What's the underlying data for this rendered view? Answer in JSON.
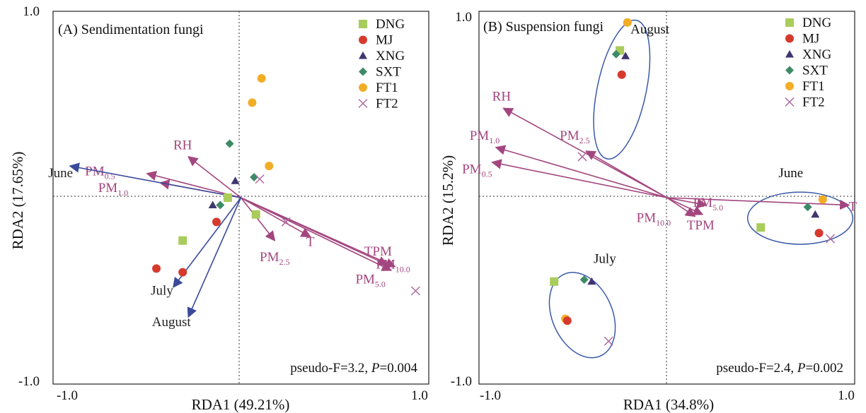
{
  "chart_data": [
    {
      "type": "scatter",
      "panel_title": "(A) Sendimentation fungi",
      "xlabel": "RDA1 (49.21%)",
      "ylabel": "RDA2 (17.65%)",
      "xlim": [
        -1.0,
        1.0
      ],
      "ylim": [
        -1.0,
        1.0
      ],
      "x_ticks": [
        "-1.0",
        "1.0"
      ],
      "y_ticks": [
        "1.0",
        "-1.0"
      ],
      "legend_position": "top-right",
      "stats_prefix": "pseudo-F=3.2, ",
      "stats_p_label": "P",
      "stats_p_value": "=0.004",
      "legend": [
        {
          "name": "DNG",
          "symbol": "square",
          "color": "#a9cc5c"
        },
        {
          "name": "MJ",
          "symbol": "circle",
          "color": "#d63a2d"
        },
        {
          "name": "XNG",
          "symbol": "triangle",
          "color": "#3f3570"
        },
        {
          "name": "SXT",
          "symbol": "diamond",
          "color": "#3e8a66"
        },
        {
          "name": "FT1",
          "symbol": "circle",
          "color": "#f2ad27"
        },
        {
          "name": "FT2",
          "symbol": "x",
          "color": "#b06aa0"
        }
      ],
      "points": [
        {
          "group": "DNG",
          "x": -0.07,
          "y": 0.0
        },
        {
          "group": "DNG",
          "x": 0.08,
          "y": -0.09
        },
        {
          "group": "DNG",
          "x": -0.31,
          "y": -0.23
        },
        {
          "group": "MJ",
          "x": -0.13,
          "y": -0.13
        },
        {
          "group": "MJ",
          "x": -0.45,
          "y": -0.38
        },
        {
          "group": "MJ",
          "x": -0.31,
          "y": -0.4
        },
        {
          "group": "XNG",
          "x": -0.03,
          "y": 0.09
        },
        {
          "group": "XNG",
          "x": -0.15,
          "y": -0.04
        },
        {
          "group": "SXT",
          "x": -0.06,
          "y": 0.29
        },
        {
          "group": "SXT",
          "x": 0.07,
          "y": 0.11
        },
        {
          "group": "SXT",
          "x": -0.11,
          "y": -0.04
        },
        {
          "group": "FT1",
          "x": 0.11,
          "y": 0.64
        },
        {
          "group": "FT1",
          "x": 0.06,
          "y": 0.51
        },
        {
          "group": "FT1",
          "x": 0.15,
          "y": 0.17
        },
        {
          "group": "FT2",
          "x": 0.1,
          "y": 0.1
        },
        {
          "group": "FT2",
          "x": 0.24,
          "y": -0.13
        },
        {
          "group": "FT2",
          "x": 0.93,
          "y": -0.5
        }
      ],
      "env_vectors": [
        {
          "label": "RH",
          "x": -0.28,
          "y": 0.22,
          "color": "#a3467f",
          "label_dx": -0.31,
          "label_dy": 0.26
        },
        {
          "label": "PM",
          "sub": "0.5",
          "x": -0.5,
          "y": 0.13,
          "color": "#a3467f",
          "label_dx": -0.75,
          "label_dy": 0.12
        },
        {
          "label": "PM",
          "sub": "1.0",
          "x": -0.43,
          "y": 0.08,
          "color": "#a3467f",
          "label_dx": -0.68,
          "label_dy": 0.03
        },
        {
          "label": "PM",
          "sub": "2.5",
          "x": 0.18,
          "y": -0.23,
          "color": "#a3467f",
          "label_dx": 0.18,
          "label_dy": -0.34
        },
        {
          "label": "T",
          "x": 0.37,
          "y": -0.21,
          "color": "#a3467f",
          "label_dx": 0.37,
          "label_dy": -0.26
        },
        {
          "label": "TPM",
          "x": 0.78,
          "y": -0.36,
          "color": "#a3467f",
          "label_dx": 0.73,
          "label_dy": -0.31
        },
        {
          "label": "PM",
          "sub": "10.0",
          "x": 0.82,
          "y": -0.37,
          "color": "#a3467f",
          "label_dx": 0.81,
          "label_dy": -0.38
        },
        {
          "label": "PM",
          "sub": "5.0",
          "x": 0.8,
          "y": -0.39,
          "color": "#a3467f",
          "label_dx": 0.69,
          "label_dy": -0.46
        }
      ],
      "month_vectors": [
        {
          "label": "June",
          "x": -0.91,
          "y": 0.17,
          "color": "#3a4a9a",
          "label_dx": -0.96,
          "label_dy": 0.11
        },
        {
          "label": "July",
          "x": -0.36,
          "y": -0.48,
          "color": "#3a4a9a",
          "label_dx": -0.42,
          "label_dy": -0.52
        },
        {
          "label": "August",
          "x": -0.28,
          "y": -0.64,
          "color": "#3a4a9a",
          "label_dx": -0.37,
          "label_dy": -0.69
        }
      ],
      "ellipses": []
    },
    {
      "type": "scatter",
      "panel_title": "(B) Suspension fungi",
      "xlabel": "RDA1 (34.8%)",
      "ylabel": "RDA2 (15.2%)",
      "xlim": [
        -1.0,
        1.0
      ],
      "ylim": [
        -1.0,
        1.0
      ],
      "x_ticks": [
        "-1.0",
        "1.0"
      ],
      "y_ticks": [
        "1.0",
        "-1.0"
      ],
      "legend_position": "top-right",
      "stats_prefix": "pseudo-F=2.4, ",
      "stats_p_label": "P",
      "stats_p_value": "=0.002",
      "legend": [
        {
          "name": "DNG",
          "symbol": "square",
          "color": "#a9cc5c"
        },
        {
          "name": "MJ",
          "symbol": "circle",
          "color": "#d63a2d"
        },
        {
          "name": "XNG",
          "symbol": "triangle",
          "color": "#3f3570"
        },
        {
          "name": "SXT",
          "symbol": "diamond",
          "color": "#3e8a66"
        },
        {
          "name": "FT1",
          "symbol": "circle",
          "color": "#f2ad27"
        },
        {
          "name": "FT2",
          "symbol": "x",
          "color": "#b06aa0"
        }
      ],
      "points": [
        {
          "group": "DNG",
          "x": -0.25,
          "y": 0.79
        },
        {
          "group": "SXT",
          "x": -0.27,
          "y": 0.77
        },
        {
          "group": "XNG",
          "x": -0.22,
          "y": 0.76
        },
        {
          "group": "MJ",
          "x": -0.24,
          "y": 0.66
        },
        {
          "group": "FT1",
          "x": -0.21,
          "y": 0.94
        },
        {
          "group": "FT2",
          "x": -0.45,
          "y": 0.22
        },
        {
          "group": "DNG",
          "x": 0.5,
          "y": -0.16
        },
        {
          "group": "SXT",
          "x": 0.75,
          "y": -0.05
        },
        {
          "group": "XNG",
          "x": 0.79,
          "y": -0.09
        },
        {
          "group": "FT1",
          "x": 0.83,
          "y": -0.01
        },
        {
          "group": "MJ",
          "x": 0.81,
          "y": -0.19
        },
        {
          "group": "FT2",
          "x": 0.87,
          "y": -0.22
        },
        {
          "group": "DNG",
          "x": -0.6,
          "y": -0.45
        },
        {
          "group": "SXT",
          "x": -0.44,
          "y": -0.44
        },
        {
          "group": "XNG",
          "x": -0.4,
          "y": -0.45
        },
        {
          "group": "FT1",
          "x": -0.54,
          "y": -0.65
        },
        {
          "group": "MJ",
          "x": -0.53,
          "y": -0.66
        },
        {
          "group": "FT2",
          "x": -0.31,
          "y": -0.77
        }
      ],
      "env_vectors": [
        {
          "label": "RH",
          "x": -0.87,
          "y": 0.48,
          "color": "#a3467f",
          "label_dx": -0.88,
          "label_dy": 0.52
        },
        {
          "label": "PM",
          "sub": "1.0",
          "x": -0.91,
          "y": 0.27,
          "color": "#a3467f",
          "label_dx": -0.97,
          "label_dy": 0.31
        },
        {
          "label": "PM",
          "sub": "0.5",
          "x": -0.93,
          "y": 0.19,
          "color": "#a3467f",
          "label_dx": -1.01,
          "label_dy": 0.13
        },
        {
          "label": "PM",
          "sub": "2.5",
          "x": -0.43,
          "y": 0.25,
          "color": "#a3467f",
          "label_dx": -0.49,
          "label_dy": 0.31
        },
        {
          "label": "PM",
          "sub": "5.0",
          "x": 0.21,
          "y": -0.04,
          "color": "#a3467f",
          "label_dx": 0.22,
          "label_dy": -0.05
        },
        {
          "label": "PM",
          "sub": "10.0",
          "x": 0.15,
          "y": -0.1,
          "color": "#a3467f",
          "label_dx": -0.07,
          "label_dy": -0.13
        },
        {
          "label": "TPM",
          "x": 0.19,
          "y": -0.09,
          "color": "#a3467f",
          "label_dx": 0.18,
          "label_dy": -0.17
        },
        {
          "label": "T",
          "x": 0.97,
          "y": -0.04,
          "color": "#a3467f",
          "label_dx": 0.99,
          "label_dy": -0.07
        }
      ],
      "month_vectors": [],
      "ellipse_labels": [
        {
          "label": "August",
          "x": -0.09,
          "y": 0.88
        },
        {
          "label": "June",
          "x": 0.66,
          "y": 0.11
        },
        {
          "label": "July",
          "x": -0.33,
          "y": -0.35
        }
      ],
      "ellipses": [
        {
          "cx": -0.24,
          "cy": 0.58,
          "rx": 0.13,
          "ry": 0.38,
          "rotate": 12
        },
        {
          "cx": 0.71,
          "cy": -0.11,
          "rx": 0.28,
          "ry": 0.14,
          "rotate": 0
        },
        {
          "cx": -0.45,
          "cy": -0.63,
          "rx": 0.16,
          "ry": 0.24,
          "rotate": -24
        }
      ]
    }
  ]
}
